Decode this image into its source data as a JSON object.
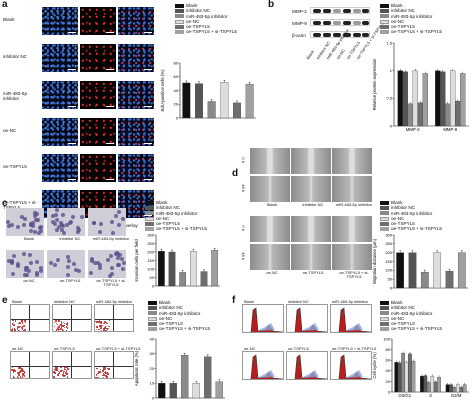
{
  "panels": [
    "a",
    "b",
    "c",
    "d",
    "e",
    "f"
  ],
  "legend": [
    "Blank",
    "inhibitor NC",
    "miR-483-5p inhibitor",
    "oe-NC",
    "oe-TSPYL5",
    "oe-TSPYL5 + si-TSPYL5"
  ],
  "legend_colors": [
    "#111111",
    "#555555",
    "#8a8a8a",
    "#dddddd",
    "#6e6e6e",
    "#a0a0a0"
  ],
  "panel_a": {
    "rows": [
      "Blank",
      "inhibitor NC",
      "miR-483-5p inhibitor",
      "oe-NC",
      "oe-TSPYL5",
      "oe-TSPYL5 + si-TSPYL5"
    ],
    "cols": [
      "Hochest",
      "EdU",
      "Overlay"
    ],
    "scale": "50 µm",
    "ylabel": "EdU-positive cells (%)"
  },
  "panel_b": {
    "blots": [
      "MMP-2",
      "MMP-9",
      "β-actin"
    ],
    "lanes": [
      "Blank",
      "inhibitor NC",
      "miR-483-5p inhibitor",
      "oe-NC",
      "oe-TSPYL5",
      "oe-TSPYL5 + si-TSPYL5"
    ],
    "ylabel": "Relative protein expression",
    "groups": [
      "MMP-2",
      "MMP-9"
    ]
  },
  "panel_c": {
    "top": [
      "Blank",
      "inhibitor NC",
      "miR-483-5p inhibitor"
    ],
    "bottom": [
      "oe-NC",
      "oe-TSPYL5",
      "oe-TSPYL5 + si-TSPYL5"
    ],
    "ylabel": "Invasion cells per field"
  },
  "panel_d": {
    "time_top": "0 h",
    "time_bottom": "48 h",
    "top": [
      "Blank",
      "inhibitor NC",
      "miR-483-5p inhibitor"
    ],
    "bottom": [
      "oe-NC",
      "oe-TSPYL5",
      "oe-TSPYL5 + si-TSPYL5"
    ],
    "ylabel": "Migration distance (µm)"
  },
  "panel_e": {
    "top": [
      "Blank",
      "inhibitor NC",
      "miR-483-5p inhibitor"
    ],
    "bottom": [
      "oe-NC",
      "oe-TSPYL5",
      "oe-TSPYL5 + si-TSPYL5"
    ],
    "ylabel": "Apoptosis rate (%)"
  },
  "panel_f": {
    "top": [
      "Blank",
      "inhibitor NC",
      "miR-483-5p inhibitor"
    ],
    "bottom": [
      "oe-NC",
      "oe-TSPYL5",
      "oe-TSPYL5 + si-TSPYL5"
    ],
    "ylabel": "Cell cycle (%)",
    "phases": [
      "G0/G1",
      "S",
      "G2/M"
    ]
  },
  "chart_data": [
    {
      "type": "bar",
      "panel": "a",
      "ylabel": "EdU-positive cells (%)",
      "ylim": [
        0,
        80
      ],
      "yticks": [
        0,
        20,
        40,
        60,
        80
      ],
      "categories": [
        "Blank",
        "inhibitor NC",
        "miR-483-5p inhibitor",
        "oe-NC",
        "oe-TSPYL5",
        "oe-TSPYL5 + si-TSPYL5"
      ],
      "values": [
        51,
        50,
        24,
        52,
        22,
        49
      ]
    },
    {
      "type": "bar",
      "panel": "b",
      "ylabel": "Relative protein expression",
      "ylim": [
        0,
        1.5
      ],
      "yticks": [
        0,
        0.5,
        1.0,
        1.5
      ],
      "categories": [
        "MMP-2",
        "MMP-9"
      ],
      "series": [
        {
          "name": "Blank",
          "values": [
            1.0,
            1.0
          ]
        },
        {
          "name": "inhibitor NC",
          "values": [
            0.98,
            0.98
          ]
        },
        {
          "name": "miR-483-5p inhibitor",
          "values": [
            0.4,
            0.4
          ]
        },
        {
          "name": "oe-NC",
          "values": [
            1.0,
            1.0
          ]
        },
        {
          "name": "oe-TSPYL5",
          "values": [
            0.42,
            0.45
          ]
        },
        {
          "name": "oe-TSPYL5 + si-TSPYL5",
          "values": [
            0.95,
            0.95
          ]
        }
      ]
    },
    {
      "type": "bar",
      "panel": "c",
      "ylabel": "Invasion cells per field",
      "ylim": [
        0,
        300
      ],
      "yticks": [
        0,
        50,
        100,
        150,
        200,
        250,
        300
      ],
      "categories": [
        "Blank",
        "inhibitor NC",
        "miR-483-5p inhibitor",
        "oe-NC",
        "oe-TSPYL5",
        "oe-TSPYL5 + si-TSPYL5"
      ],
      "values": [
        205,
        200,
        80,
        205,
        85,
        210
      ]
    },
    {
      "type": "bar",
      "panel": "d",
      "ylabel": "Migration distance (µm)",
      "ylim": [
        0,
        300
      ],
      "yticks": [
        0,
        50,
        100,
        150,
        200,
        250,
        300
      ],
      "categories": [
        "Blank",
        "inhibitor NC",
        "miR-483-5p inhibitor",
        "oe-NC",
        "oe-TSPYL5",
        "oe-TSPYL5 + si-TSPYL5"
      ],
      "values": [
        200,
        200,
        90,
        200,
        95,
        200
      ]
    },
    {
      "type": "bar",
      "panel": "e",
      "ylabel": "Apoptosis rate (%)",
      "ylim": [
        0,
        40
      ],
      "yticks": [
        0,
        10,
        20,
        30,
        40
      ],
      "categories": [
        "Blank",
        "inhibitor NC",
        "miR-483-5p inhibitor",
        "oe-NC",
        "oe-TSPYL5",
        "oe-TSPYL5 + si-TSPYL5"
      ],
      "values": [
        10,
        10,
        29,
        10,
        28,
        11
      ]
    },
    {
      "type": "bar",
      "panel": "f",
      "ylabel": "Cell cycle (%)",
      "ylim": [
        0,
        100
      ],
      "yticks": [
        0,
        20,
        40,
        60,
        80,
        100
      ],
      "categories": [
        "G0/G1",
        "S",
        "G2/M"
      ],
      "series": [
        {
          "name": "Blank",
          "values": [
            56,
            30,
            14
          ]
        },
        {
          "name": "inhibitor NC",
          "values": [
            55,
            31,
            14
          ]
        },
        {
          "name": "miR-483-5p inhibitor",
          "values": [
            73,
            18,
            9
          ]
        },
        {
          "name": "oe-NC",
          "values": [
            56,
            30,
            14
          ]
        },
        {
          "name": "oe-TSPYL5",
          "values": [
            72,
            19,
            9
          ]
        },
        {
          "name": "oe-TSPYL5 + si-TSPYL5",
          "values": [
            58,
            28,
            14
          ]
        }
      ]
    }
  ]
}
